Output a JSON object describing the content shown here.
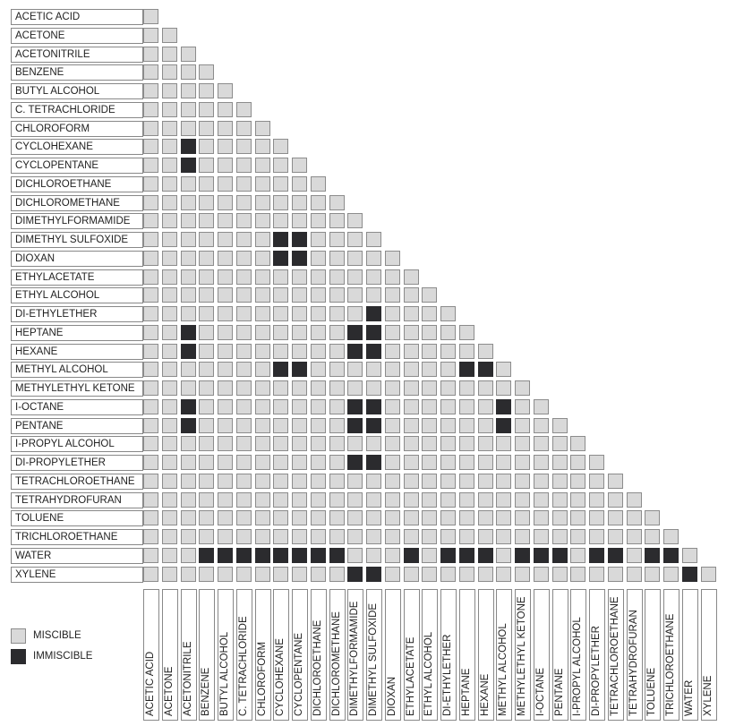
{
  "chart_data": {
    "type": "heatmap",
    "title": "",
    "solvents": [
      "ACETIC ACID",
      "ACETONE",
      "ACETONITRILE",
      "BENZENE",
      "BUTYL ALCOHOL",
      "C. TETRACHLORIDE",
      "CHLOROFORM",
      "CYCLOHEXANE",
      "CYCLOPENTANE",
      "DICHLOROETHANE",
      "DICHLOROMETHANE",
      "DIMETHYLFORMAMIDE",
      "DIMETHYL SULFOXIDE",
      "DIOXAN",
      "ETHYLACETATE",
      "ETHYL ALCOHOL",
      "DI-ETHYLETHER",
      "HEPTANE",
      "HEXANE",
      "METHYL ALCOHOL",
      "METHYLETHYL KETONE",
      "I-OCTANE",
      "PENTANE",
      "I-PROPYL ALCOHOL",
      "DI-PROPYLETHER",
      "TETRACHLOROETHANE",
      "TETRAHYDROFURAN",
      "TOLUENE",
      "TRICHLOROETHANE",
      "WATER",
      "XYLENE"
    ],
    "immiscible_pairs": [
      [
        7,
        2
      ],
      [
        8,
        2
      ],
      [
        12,
        7
      ],
      [
        12,
        8
      ],
      [
        13,
        7
      ],
      [
        13,
        8
      ],
      [
        16,
        12
      ],
      [
        17,
        2
      ],
      [
        17,
        11
      ],
      [
        17,
        12
      ],
      [
        18,
        2
      ],
      [
        18,
        11
      ],
      [
        18,
        12
      ],
      [
        19,
        7
      ],
      [
        19,
        8
      ],
      [
        19,
        17
      ],
      [
        19,
        18
      ],
      [
        21,
        2
      ],
      [
        21,
        11
      ],
      [
        21,
        12
      ],
      [
        21,
        19
      ],
      [
        22,
        2
      ],
      [
        22,
        11
      ],
      [
        22,
        12
      ],
      [
        22,
        19
      ],
      [
        24,
        11
      ],
      [
        24,
        12
      ],
      [
        29,
        3
      ],
      [
        29,
        4
      ],
      [
        29,
        5
      ],
      [
        29,
        6
      ],
      [
        29,
        7
      ],
      [
        29,
        8
      ],
      [
        29,
        9
      ],
      [
        29,
        10
      ],
      [
        29,
        14
      ],
      [
        29,
        16
      ],
      [
        29,
        17
      ],
      [
        29,
        18
      ],
      [
        29,
        20
      ],
      [
        29,
        21
      ],
      [
        29,
        22
      ],
      [
        29,
        24
      ],
      [
        29,
        25
      ],
      [
        29,
        27
      ],
      [
        29,
        28
      ],
      [
        30,
        11
      ],
      [
        30,
        12
      ],
      [
        30,
        29
      ]
    ],
    "colors": {
      "miscible": "#d9d9d9",
      "immiscible": "#2b2b2e"
    }
  },
  "legend": {
    "miscible": "MISCIBLE",
    "immiscible": "IMMISCIBLE",
    "placement": "bottom-left"
  }
}
